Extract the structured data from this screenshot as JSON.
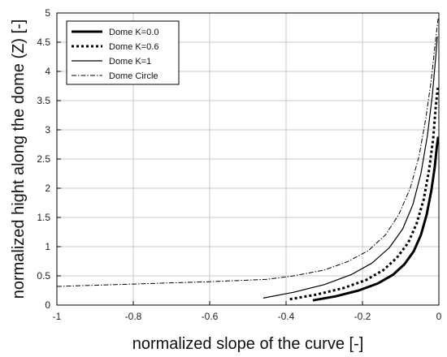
{
  "chart_data": {
    "type": "line",
    "title": "",
    "xlabel": "normalized slope of the curve [-]",
    "ylabel": "normalized hight along the dome (Z) [-]",
    "xlim": [
      -1,
      0
    ],
    "ylim": [
      0,
      5
    ],
    "xticks": [
      -1,
      -0.8,
      -0.6,
      -0.4,
      -0.2,
      0
    ],
    "xtick_labels": [
      "-1",
      "-0.8",
      "-0.6",
      "-0.4",
      "-0.2",
      "0"
    ],
    "yticks": [
      0,
      0.5,
      1,
      1.5,
      2,
      2.5,
      3,
      3.5,
      4,
      4.5,
      5
    ],
    "ytick_labels": [
      "0",
      "0.5",
      "1",
      "1.5",
      "2",
      "2.5",
      "3",
      "3.5",
      "4",
      "4.5",
      "5"
    ],
    "grid": true,
    "legend_position": "top-left",
    "series": [
      {
        "name": "Dome K=0.0",
        "style": "solid-thick",
        "color": "#000000",
        "x": [
          -0.33,
          -0.27,
          -0.21,
          -0.16,
          -0.12,
          -0.09,
          -0.066,
          -0.047,
          -0.032,
          -0.02,
          -0.011,
          -0.005,
          -0.002
        ],
        "y": [
          0.08,
          0.15,
          0.25,
          0.37,
          0.52,
          0.7,
          0.92,
          1.2,
          1.55,
          1.95,
          2.35,
          2.72,
          2.88
        ]
      },
      {
        "name": "Dome K=0.6",
        "style": "dotted-thick",
        "color": "#000000",
        "x": [
          -0.39,
          -0.32,
          -0.25,
          -0.19,
          -0.145,
          -0.11,
          -0.08,
          -0.058,
          -0.04,
          -0.026,
          -0.015,
          -0.008,
          -0.003
        ],
        "y": [
          0.1,
          0.18,
          0.29,
          0.43,
          0.6,
          0.81,
          1.07,
          1.4,
          1.8,
          2.3,
          2.85,
          3.4,
          3.72
        ]
      },
      {
        "name": "Dome K=1",
        "style": "solid-thin",
        "color": "#000000",
        "x": [
          -0.46,
          -0.38,
          -0.3,
          -0.23,
          -0.175,
          -0.13,
          -0.095,
          -0.068,
          -0.047,
          -0.03,
          -0.017,
          -0.008,
          -0.004
        ],
        "y": [
          0.12,
          0.22,
          0.35,
          0.52,
          0.72,
          0.98,
          1.3,
          1.72,
          2.25,
          2.9,
          3.6,
          4.25,
          4.6
        ]
      },
      {
        "name": "Dome Circle",
        "style": "dashdot-thin",
        "color": "#000000",
        "x": [
          -1.0,
          -0.8,
          -0.6,
          -0.45,
          -0.38,
          -0.3,
          -0.24,
          -0.185,
          -0.14,
          -0.105,
          -0.075,
          -0.052,
          -0.034,
          -0.02,
          -0.01,
          -0.004,
          -0.002
        ],
        "y": [
          0.32,
          0.36,
          0.4,
          0.44,
          0.5,
          0.6,
          0.74,
          0.93,
          1.2,
          1.55,
          2.0,
          2.55,
          3.2,
          3.85,
          4.45,
          4.8,
          4.9
        ]
      }
    ]
  }
}
